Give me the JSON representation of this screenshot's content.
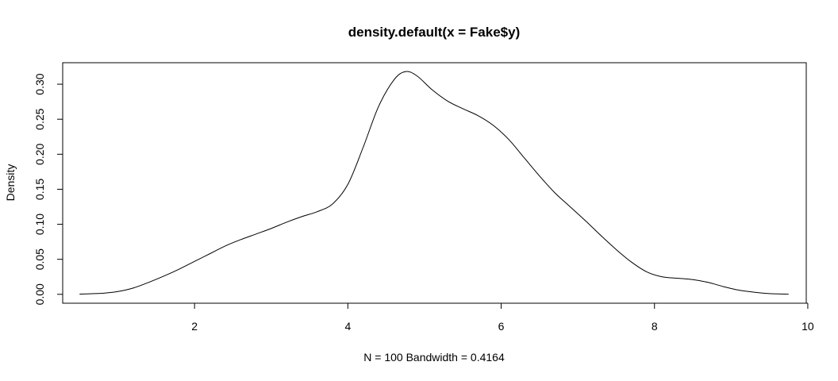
{
  "chart_data": {
    "type": "line",
    "title": "density.default(x = Fake$y)",
    "xlabel": "N = 100   Bandwidth = 0.4164",
    "ylabel": "Density",
    "xlim": [
      0.28,
      9.98
    ],
    "ylim": [
      -0.0127,
      0.3307
    ],
    "x_ticks": [
      2,
      4,
      6,
      8,
      10
    ],
    "x_tick_labels": [
      "2",
      "4",
      "6",
      "8",
      "10"
    ],
    "y_ticks": [
      0.0,
      0.05,
      0.1,
      0.15,
      0.2,
      0.25,
      0.3
    ],
    "y_tick_labels": [
      "0.00",
      "0.05",
      "0.10",
      "0.15",
      "0.20",
      "0.25",
      "0.30"
    ],
    "grid": false,
    "series": [
      {
        "x": [
          0.5,
          0.8,
          1.0,
          1.2,
          1.4,
          1.6,
          1.8,
          2.0,
          2.2,
          2.4,
          2.6,
          2.8,
          3.0,
          3.2,
          3.4,
          3.6,
          3.8,
          4.0,
          4.2,
          4.4,
          4.6,
          4.75,
          4.9,
          5.1,
          5.3,
          5.5,
          5.7,
          5.9,
          6.1,
          6.3,
          6.5,
          6.7,
          6.9,
          7.1,
          7.3,
          7.5,
          7.7,
          7.9,
          8.1,
          8.3,
          8.5,
          8.7,
          8.9,
          9.1,
          9.3,
          9.5,
          9.75
        ],
        "y": [
          0.0003,
          0.0015,
          0.004,
          0.009,
          0.017,
          0.026,
          0.036,
          0.047,
          0.058,
          0.069,
          0.078,
          0.086,
          0.094,
          0.103,
          0.111,
          0.118,
          0.129,
          0.157,
          0.21,
          0.268,
          0.306,
          0.318,
          0.312,
          0.292,
          0.276,
          0.265,
          0.255,
          0.241,
          0.221,
          0.195,
          0.169,
          0.145,
          0.125,
          0.105,
          0.084,
          0.064,
          0.046,
          0.032,
          0.025,
          0.023,
          0.021,
          0.017,
          0.011,
          0.006,
          0.003,
          0.001,
          0.0002
        ]
      }
    ]
  }
}
